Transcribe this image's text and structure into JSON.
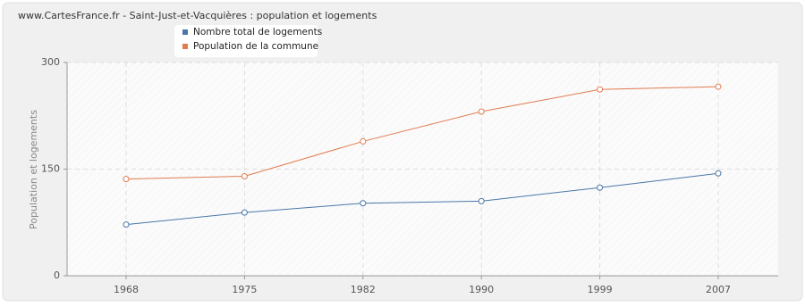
{
  "chart_data": {
    "type": "line",
    "title": "www.CartesFrance.fr - Saint-Just-et-Vacquières : population et logements",
    "y_label": "Population et logements",
    "categories": [
      "1968",
      "1975",
      "1982",
      "1990",
      "1999",
      "2007"
    ],
    "series": [
      {
        "name": "Nombre total de logements",
        "color": "#4a77a8",
        "values": [
          72,
          89,
          102,
          105,
          124,
          144
        ]
      },
      {
        "name": "Population de la commune",
        "color": "#e07b4f",
        "values": [
          136,
          140,
          189,
          231,
          262,
          266
        ]
      }
    ],
    "ylim": [
      0,
      300
    ],
    "yticks": [
      0,
      150,
      300
    ],
    "grid": true
  }
}
